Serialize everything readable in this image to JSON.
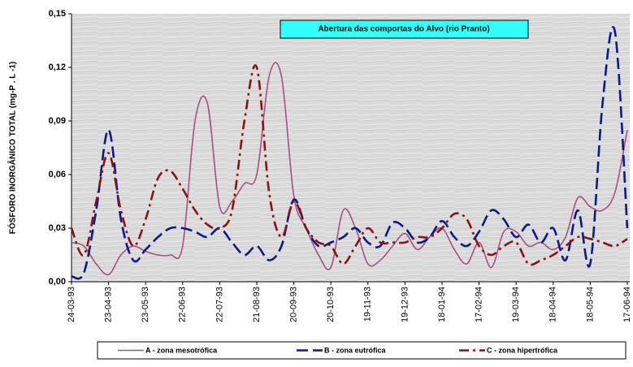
{
  "chart_data": {
    "type": "line",
    "annotation": "Abertura das comportas do Alvo (rio Pranto)",
    "ylabel": "FÓSFORO INORGÂNICO TOTAL (mg-P . L -1)",
    "xlim": [
      0,
      452
    ],
    "ylim": [
      0,
      0.15
    ],
    "xticks": [
      {
        "value": 0,
        "label": "24-03-93"
      },
      {
        "value": 30,
        "label": "23-04-93"
      },
      {
        "value": 60,
        "label": "23-05-93"
      },
      {
        "value": 90,
        "label": "22-06-93"
      },
      {
        "value": 120,
        "label": "22-07-93"
      },
      {
        "value": 150,
        "label": "21-08-93"
      },
      {
        "value": 180,
        "label": "20-09-93"
      },
      {
        "value": 210,
        "label": "20-10-93"
      },
      {
        "value": 240,
        "label": "19-11-93"
      },
      {
        "value": 270,
        "label": "19-12-93"
      },
      {
        "value": 300,
        "label": "18-01-94"
      },
      {
        "value": 330,
        "label": "17-02-94"
      },
      {
        "value": 360,
        "label": "19-03-94"
      },
      {
        "value": 390,
        "label": "18-04-94"
      },
      {
        "value": 420,
        "label": "18-05-94"
      },
      {
        "value": 450,
        "label": "17-06-94"
      }
    ],
    "yticks": [
      {
        "value": 0,
        "label": "0,00"
      },
      {
        "value": 0.03,
        "label": "0,03"
      },
      {
        "value": 0.06,
        "label": "0,06"
      },
      {
        "value": 0.09,
        "label": "0,09"
      },
      {
        "value": 0.12,
        "label": "0,12"
      },
      {
        "value": 0.15,
        "label": "0,15"
      }
    ],
    "x": [
      0,
      10,
      20,
      30,
      40,
      50,
      60,
      70,
      80,
      90,
      100,
      110,
      120,
      130,
      140,
      150,
      160,
      170,
      180,
      190,
      200,
      210,
      220,
      230,
      240,
      250,
      260,
      270,
      280,
      290,
      300,
      310,
      320,
      330,
      340,
      350,
      360,
      370,
      380,
      390,
      400,
      410,
      420,
      430,
      440,
      450
    ],
    "series": [
      {
        "name": "A - zona mesotrófica",
        "color": "#a8507e",
        "linestyle": "solid",
        "values": [
          0.022,
          0.02,
          0.01,
          0.004,
          0.015,
          0.02,
          0.017,
          0.015,
          0.015,
          0.02,
          0.09,
          0.1,
          0.042,
          0.045,
          0.055,
          0.06,
          0.115,
          0.115,
          0.048,
          0.03,
          0.015,
          0.008,
          0.04,
          0.03,
          0.01,
          0.012,
          0.02,
          0.027,
          0.018,
          0.025,
          0.03,
          0.018,
          0.01,
          0.022,
          0.008,
          0.028,
          0.028,
          0.02,
          0.022,
          0.018,
          0.025,
          0.047,
          0.042,
          0.04,
          0.05,
          0.085
        ]
      },
      {
        "name": "B - zona eutrófica",
        "color": "#0a1a8c",
        "linestyle": "dashed",
        "values": [
          0.003,
          0.005,
          0.04,
          0.085,
          0.035,
          0.012,
          0.018,
          0.025,
          0.03,
          0.03,
          0.028,
          0.025,
          0.03,
          0.022,
          0.015,
          0.02,
          0.012,
          0.02,
          0.046,
          0.03,
          0.02,
          0.022,
          0.025,
          0.03,
          0.022,
          0.02,
          0.033,
          0.03,
          0.022,
          0.025,
          0.034,
          0.025,
          0.02,
          0.028,
          0.04,
          0.035,
          0.025,
          0.032,
          0.022,
          0.03,
          0.012,
          0.04,
          0.01,
          0.1,
          0.14,
          0.03
        ]
      },
      {
        "name": "C - zona hipertrófica",
        "color": "#8b1212",
        "linestyle": "dashdot",
        "values": [
          0.03,
          0.015,
          0.045,
          0.072,
          0.04,
          0.02,
          0.035,
          0.058,
          0.062,
          0.052,
          0.04,
          0.032,
          0.03,
          0.04,
          0.09,
          0.12,
          0.05,
          0.025,
          0.045,
          0.03,
          0.022,
          0.02,
          0.01,
          0.02,
          0.03,
          0.022,
          0.022,
          0.022,
          0.025,
          0.025,
          0.03,
          0.038,
          0.035,
          0.02,
          0.015,
          0.02,
          0.022,
          0.01,
          0.012,
          0.015,
          0.02,
          0.025,
          0.024,
          0.022,
          0.02,
          0.024
        ]
      }
    ]
  }
}
